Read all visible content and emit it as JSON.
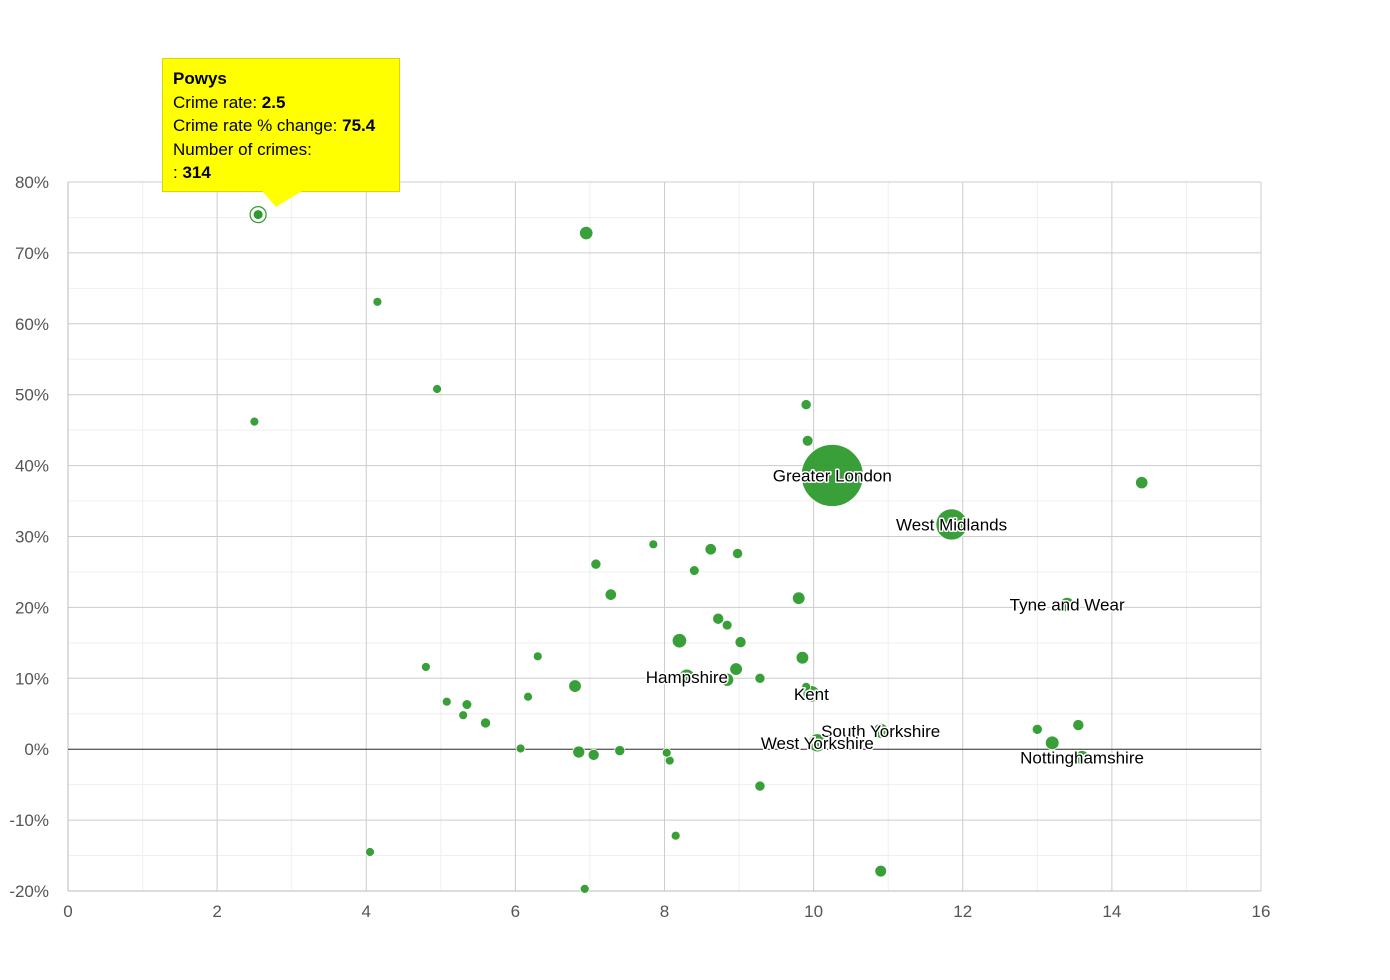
{
  "chart_data": {
    "type": "scatter",
    "title": "",
    "xlabel": "",
    "ylabel": "",
    "xlim": [
      0,
      16
    ],
    "ylim": [
      -20,
      80
    ],
    "x_ticks": [
      0,
      2,
      4,
      6,
      8,
      10,
      12,
      14,
      16
    ],
    "y_ticks": [
      80,
      70,
      60,
      50,
      40,
      30,
      20,
      10,
      0,
      -10,
      -20
    ],
    "y_tick_labels": [
      "80%",
      "70%",
      "60%",
      "50%",
      "40%",
      "30%",
      "20%",
      "10%",
      "0%",
      "-10%",
      "-20%"
    ],
    "x_tick_labels": [
      "0",
      "2",
      "4",
      "6",
      "8",
      "10",
      "12",
      "14",
      "16"
    ],
    "grid": true,
    "bubble_color": "#2e9b2e",
    "points": [
      {
        "x": 2.55,
        "y": 75.4,
        "size": 314,
        "name": "Powys",
        "highlight": true
      },
      {
        "x": 6.95,
        "y": 72.8,
        "size": 2600
      },
      {
        "x": 4.15,
        "y": 63.1,
        "size": 500
      },
      {
        "x": 4.95,
        "y": 50.8,
        "size": 850
      },
      {
        "x": 2.5,
        "y": 46.2,
        "size": 320
      },
      {
        "x": 9.9,
        "y": 48.6,
        "size": 1500
      },
      {
        "x": 9.92,
        "y": 43.5,
        "size": 1700
      },
      {
        "x": 10.25,
        "y": 38.6,
        "size": 55000,
        "name": "Greater London"
      },
      {
        "x": 11.85,
        "y": 31.7,
        "size": 14000,
        "name": "West Midlands"
      },
      {
        "x": 14.4,
        "y": 37.6,
        "size": 2200
      },
      {
        "x": 7.85,
        "y": 28.9,
        "size": 500
      },
      {
        "x": 8.62,
        "y": 28.2,
        "size": 1900
      },
      {
        "x": 8.98,
        "y": 27.6,
        "size": 1500
      },
      {
        "x": 7.08,
        "y": 26.1,
        "size": 1500
      },
      {
        "x": 8.4,
        "y": 25.2,
        "size": 1400
      },
      {
        "x": 7.28,
        "y": 21.8,
        "size": 1900
      },
      {
        "x": 9.8,
        "y": 21.3,
        "size": 2300
      },
      {
        "x": 13.4,
        "y": 20.4,
        "size": 3000,
        "name": "Tyne and Wear"
      },
      {
        "x": 8.72,
        "y": 18.4,
        "size": 1800
      },
      {
        "x": 8.84,
        "y": 17.5,
        "size": 1400
      },
      {
        "x": 8.2,
        "y": 15.3,
        "size": 3000
      },
      {
        "x": 9.02,
        "y": 15.1,
        "size": 1800
      },
      {
        "x": 6.3,
        "y": 13.1,
        "size": 1100
      },
      {
        "x": 9.85,
        "y": 12.9,
        "size": 2300
      },
      {
        "x": 4.8,
        "y": 11.6,
        "size": 500
      },
      {
        "x": 8.96,
        "y": 11.3,
        "size": 2300
      },
      {
        "x": 8.3,
        "y": 10.2,
        "size": 3500,
        "name": "Hampshire"
      },
      {
        "x": 8.84,
        "y": 9.8,
        "size": 2500
      },
      {
        "x": 9.28,
        "y": 10.0,
        "size": 1500
      },
      {
        "x": 6.8,
        "y": 8.9,
        "size": 2300
      },
      {
        "x": 9.9,
        "y": 8.8,
        "size": 1100
      },
      {
        "x": 9.97,
        "y": 7.8,
        "size": 4000,
        "name": "Kent"
      },
      {
        "x": 6.17,
        "y": 7.4,
        "size": 1100
      },
      {
        "x": 5.08,
        "y": 6.7,
        "size": 500
      },
      {
        "x": 5.35,
        "y": 6.3,
        "size": 1400
      },
      {
        "x": 5.3,
        "y": 4.8,
        "size": 1100
      },
      {
        "x": 5.6,
        "y": 3.7,
        "size": 1500
      },
      {
        "x": 10.9,
        "y": 2.6,
        "size": 3200,
        "name": "South Yorkshire"
      },
      {
        "x": 13.0,
        "y": 2.8,
        "size": 1500
      },
      {
        "x": 13.55,
        "y": 3.4,
        "size": 1800
      },
      {
        "x": 10.05,
        "y": 0.9,
        "size": 4700,
        "name": "West Yorkshire"
      },
      {
        "x": 13.2,
        "y": 0.9,
        "size": 2700
      },
      {
        "x": 13.6,
        "y": -1.2,
        "size": 3000,
        "name": "Nottinghamshire"
      },
      {
        "x": 6.07,
        "y": 0.1,
        "size": 1100
      },
      {
        "x": 6.85,
        "y": -0.4,
        "size": 2100
      },
      {
        "x": 7.05,
        "y": -0.8,
        "size": 1800
      },
      {
        "x": 7.4,
        "y": -0.2,
        "size": 1500
      },
      {
        "x": 8.03,
        "y": -0.5,
        "size": 900
      },
      {
        "x": 8.07,
        "y": -1.6,
        "size": 1000
      },
      {
        "x": 9.28,
        "y": -5.2,
        "size": 1500
      },
      {
        "x": 8.15,
        "y": -12.2,
        "size": 1100
      },
      {
        "x": 4.05,
        "y": -14.5,
        "size": 1000
      },
      {
        "x": 10.9,
        "y": -17.2,
        "size": 2000
      },
      {
        "x": 6.93,
        "y": -19.7,
        "size": 800
      }
    ]
  },
  "tooltip": {
    "title": "Powys",
    "crime_rate_label": "Crime rate: ",
    "crime_rate_value": "2.5",
    "change_label": "Crime rate % change: ",
    "change_value": "75.4",
    "crimes_label": "Number of crimes:",
    "crimes_prefix": ": ",
    "crimes_value": "314"
  }
}
